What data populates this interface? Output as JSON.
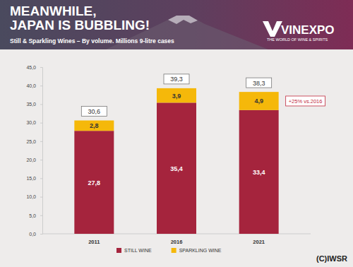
{
  "chart_data": {
    "type": "bar",
    "stacked": true,
    "data_labels": true,
    "grid": false,
    "legend": "bottom",
    "title": [
      "MEANWHILE,",
      "JAPAN IS BUBBLING!"
    ],
    "subtitle": "Still & Sparkling Wines – By volume. Millions 9-litre cases",
    "logo": {
      "name": "VINEXPO",
      "tagline": "THE WORLD OF WINE & SPIRITS"
    },
    "source": "(C)IWSR",
    "categories": [
      "2011",
      "2016",
      "2021"
    ],
    "series": [
      {
        "name": "STILL WINE",
        "color": "#a5243d",
        "values": [
          27.8,
          35.4,
          33.4
        ],
        "value_labels": [
          "27,8",
          "35,4",
          "33,4"
        ]
      },
      {
        "name": "SPARKLING WINE",
        "color": "#f5b80a",
        "values": [
          2.8,
          3.9,
          4.9
        ],
        "value_labels": [
          "2,8",
          "3,9",
          "4,9"
        ]
      }
    ],
    "totals": {
      "values": [
        30.6,
        39.3,
        38.3
      ],
      "value_labels": [
        "30,6",
        "39,3",
        "38,3"
      ]
    },
    "annotations": [
      {
        "text": "+25% vs.2016",
        "series": "SPARKLING WINE",
        "category": "2021"
      }
    ],
    "ylim": [
      0,
      45
    ],
    "yticks": [
      {
        "value": 0,
        "label": "0,0"
      },
      {
        "value": 5,
        "label": "5,0"
      },
      {
        "value": 10,
        "label": "10,0"
      },
      {
        "value": 15,
        "label": "15,0"
      },
      {
        "value": 20,
        "label": "20,0"
      },
      {
        "value": 25,
        "label": "25,0"
      },
      {
        "value": 30,
        "label": "30,0"
      },
      {
        "value": 35,
        "label": "35,0"
      },
      {
        "value": 40,
        "label": "40,0"
      },
      {
        "value": 45,
        "label": "45,0"
      }
    ]
  }
}
